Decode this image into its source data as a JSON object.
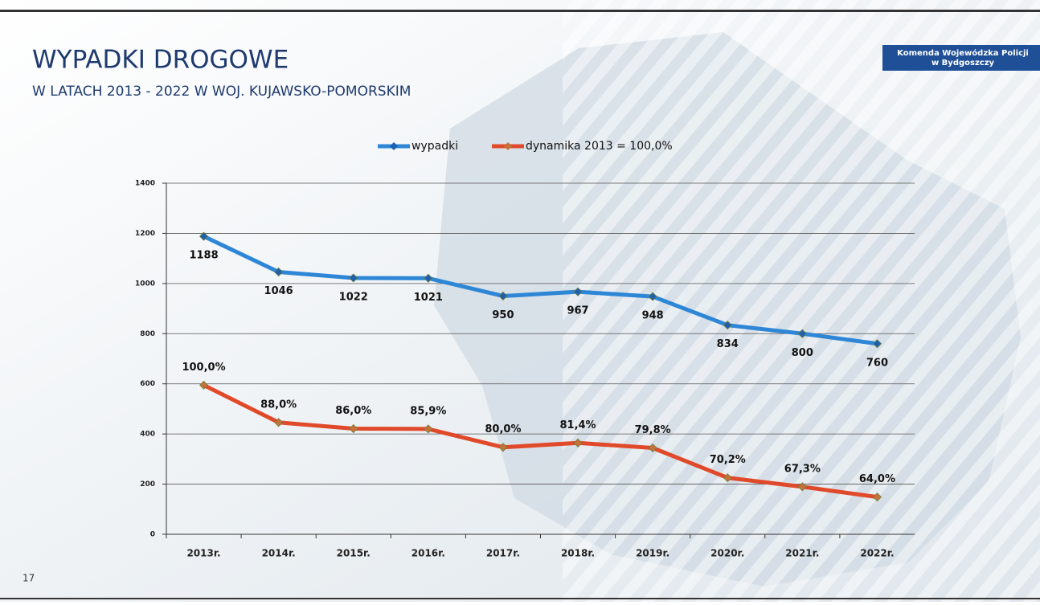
{
  "chart_data": {
    "type": "line",
    "title": "WYPADKI DROGOWE",
    "subtitle": "W  LATACH  2013 - 2022  W WOJ. KUJAWSKO-POMORSKIM",
    "categories": [
      "2013r.",
      "2014r.",
      "2015r.",
      "2016r.",
      "2017r.",
      "2018r.",
      "2019r.",
      "2020r.",
      "2021r.",
      "2022r."
    ],
    "series": [
      {
        "name": "wypadki",
        "color": "#2e86d6",
        "values": [
          1188,
          1046,
          1022,
          1021,
          950,
          967,
          948,
          834,
          800,
          760
        ]
      },
      {
        "name": "dynamika 2013 = 100,0%",
        "color": "#e04a2a",
        "axis": "y2",
        "values": [
          100,
          88,
          86,
          85.9,
          80,
          81.4,
          79.8,
          70.2,
          67.3,
          64
        ],
        "value_labels": [
          "100,0%",
          "88,0%",
          "86,0%",
          "85,9%",
          "80,0%",
          "81,4%",
          "79,8%",
          "70,2%",
          "67,3%",
          "64,0%"
        ]
      }
    ],
    "ylim": [
      0,
      1400
    ],
    "yticks": [
      0,
      200,
      400,
      600,
      800,
      1000,
      1200,
      1400
    ],
    "y2lim": [
      52,
      165
    ],
    "grid": true,
    "legend": "top"
  },
  "slide": {
    "logo_line1": "Komenda Wojewódzka Policji",
    "logo_line2": "w Bydgoszczy",
    "page_number": "17"
  }
}
